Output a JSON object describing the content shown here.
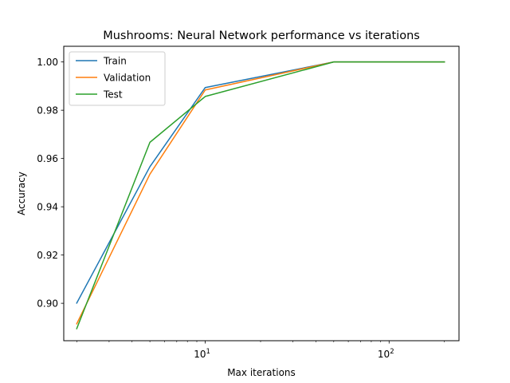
{
  "chart_data": {
    "type": "line",
    "title": "Mushrooms: Neural Network performance vs iterations",
    "xlabel": "Max iterations",
    "ylabel": "Accuracy",
    "x_scale": "log",
    "x": [
      2,
      5,
      10,
      50,
      200
    ],
    "xlim": [
      1.7,
      240
    ],
    "ylim": [
      0.8845,
      1.0065
    ],
    "x_ticks": [
      {
        "value": 10,
        "label": "10",
        "exponent": "1"
      },
      {
        "value": 100,
        "label": "10",
        "exponent": "2"
      }
    ],
    "y_ticks": [
      {
        "value": 0.9,
        "label": "0.90"
      },
      {
        "value": 0.92,
        "label": "0.92"
      },
      {
        "value": 0.94,
        "label": "0.94"
      },
      {
        "value": 0.96,
        "label": "0.96"
      },
      {
        "value": 0.98,
        "label": "0.98"
      },
      {
        "value": 1.0,
        "label": "1.00"
      }
    ],
    "series": [
      {
        "name": "Train",
        "color": "#1f77b4",
        "values": [
          0.9001,
          0.9566,
          0.9894,
          1.0,
          1.0
        ]
      },
      {
        "name": "Validation",
        "color": "#ff7f0e",
        "values": [
          0.8915,
          0.9535,
          0.9884,
          1.0,
          1.0
        ]
      },
      {
        "name": "Test",
        "color": "#2ca02c",
        "values": [
          0.8895,
          0.9667,
          0.9857,
          1.0,
          1.0
        ]
      }
    ],
    "grid": false,
    "legend_position": "upper-left"
  }
}
